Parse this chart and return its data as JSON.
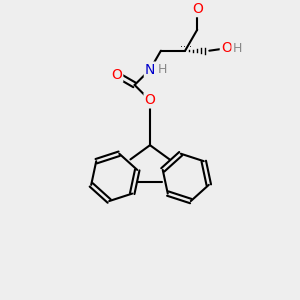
{
  "background_color": "#eeeeee",
  "bond_color": "#000000",
  "bond_width": 1.5,
  "figsize": [
    3.0,
    3.0
  ],
  "dpi": 100,
  "colors": {
    "O": "#ff0000",
    "N": "#0000dd",
    "H_teal": "#888888",
    "C": "#000000"
  }
}
